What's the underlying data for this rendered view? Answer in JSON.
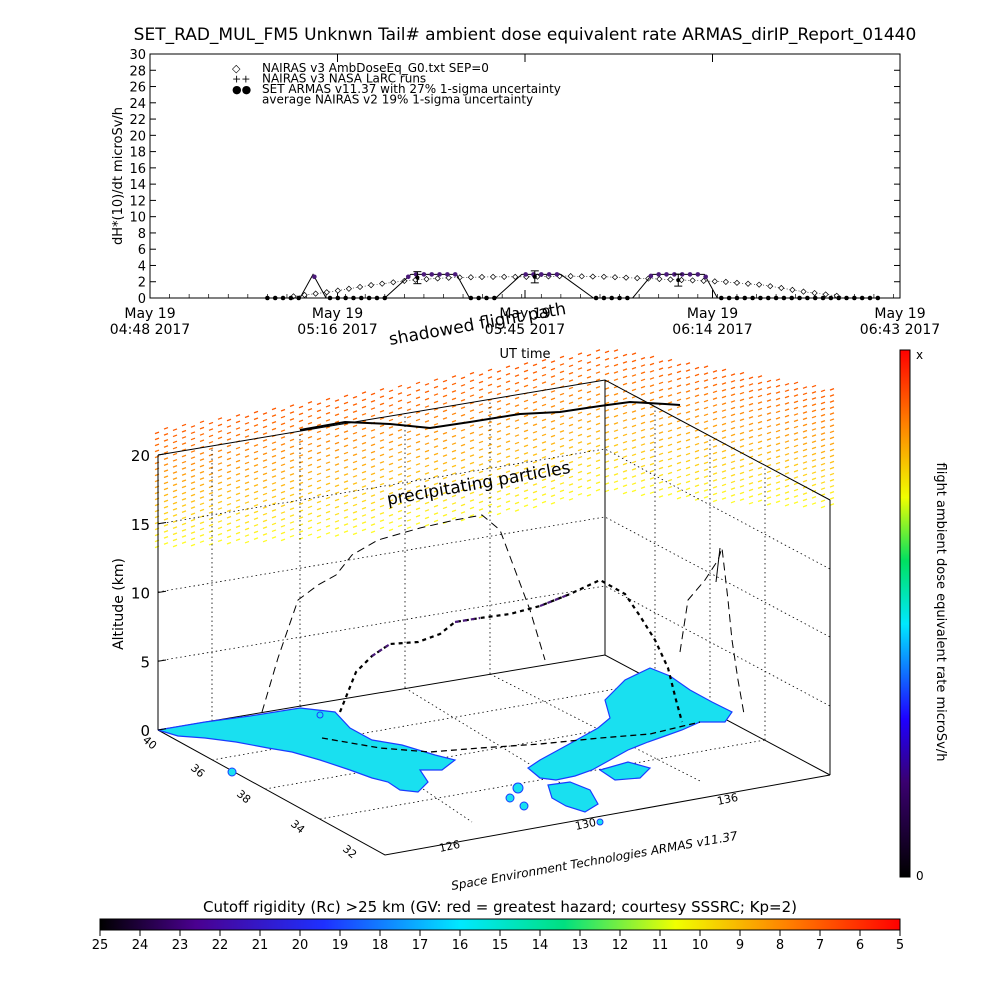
{
  "title": "SET_RAD_MUL_FM5 Unknwn Tail#  ambient dose equivalent rate ARMAS_dirIP_Report_01440",
  "top_chart": {
    "ylabel": "dH*(10)/dt microSv/h",
    "xlabel": "UT time",
    "yticks": [
      0,
      2,
      4,
      6,
      8,
      10,
      12,
      14,
      16,
      18,
      20,
      22,
      24,
      26,
      28,
      30
    ],
    "xticks": [
      {
        "l1": "May 19",
        "l2": "04:48 2017"
      },
      {
        "l1": "May 19",
        "l2": "05:16 2017"
      },
      {
        "l1": "May 19",
        "l2": "05:45 2017"
      },
      {
        "l1": "May 19",
        "l2": "06:14 2017"
      },
      {
        "l1": "May 19",
        "l2": "06:43 2017"
      }
    ],
    "legend": [
      {
        "marker": "◇",
        "text": "NAIRAS v3 AmbDoseEq_G0.txt SEP=0"
      },
      {
        "marker": "++",
        "text": "NAIRAS v3 NASA LaRC runs"
      },
      {
        "marker": "●●",
        "text": "SET ARMAS v11.37 with 27% 1-sigma uncertainty"
      },
      {
        "marker": "",
        "text": "average NAIRAS v2 19% 1-sigma uncertainty"
      }
    ]
  },
  "map3d": {
    "zlabel": "Altitude (km)",
    "zticks": [
      "0",
      "5",
      "10",
      "15",
      "20"
    ],
    "lat_ticks": [
      "40",
      "36",
      "38",
      "34",
      "32"
    ],
    "lon_ticks": [
      "126",
      "130",
      "136"
    ],
    "annotations": {
      "shadowed": "shadowed flight path",
      "precip": "precipitating particles",
      "credit": "Space Environment Technologies ARMAS v11.37"
    }
  },
  "colorbar_right": {
    "label": "flight ambient dose equivalent rate microSv/h",
    "top": "x",
    "bottom": "0"
  },
  "colorbar_bottom": {
    "label": "Cutoff rigidity (Rc) >25 km (GV: red = greatest hazard; courtesy SSSRC; Kp=2)",
    "ticks": [
      "25",
      "24",
      "23",
      "22",
      "21",
      "20",
      "19",
      "18",
      "17",
      "16",
      "15",
      "14",
      "13",
      "12",
      "11",
      "10",
      "9",
      "8",
      "7",
      "6",
      "5"
    ]
  },
  "colors": {
    "armas": "#4b1a7a",
    "land": "#19e0f0",
    "coast": "#1a3cff",
    "precip_top": "#ff7a00",
    "precip_bottom": "#ffff40"
  },
  "chart_data": {
    "type": "line",
    "title": "SET_RAD_MUL_FM5 Unknwn Tail#  ambient dose equivalent rate ARMAS_dirIP_Report_01440",
    "xlabel": "UT time",
    "ylabel": "dH*(10)/dt microSv/h",
    "ylim": [
      0,
      30
    ],
    "xlim_minutes_ut": [
      288,
      403
    ],
    "series": [
      {
        "name": "NAIRAS v3 AmbDoseEq_G0.txt SEP=0",
        "x": [
          310,
          316,
          322,
          328,
          334,
          340,
          346,
          352,
          358,
          364,
          370,
          376,
          382,
          388,
          394
        ],
        "y": [
          0.2,
          0.8,
          1.6,
          2.2,
          2.5,
          2.6,
          2.6,
          2.7,
          2.6,
          2.4,
          2.2,
          2.0,
          1.6,
          0.8,
          0.2
        ]
      },
      {
        "name": "SET ARMAS v11.37 with 27% 1-sigma uncertainty",
        "x": [
          306,
          311,
          313,
          315,
          318,
          320,
          324,
          328,
          331,
          335,
          337,
          341,
          345,
          349,
          351,
          356,
          358,
          362,
          365,
          368,
          370,
          373,
          375,
          380,
          386,
          392,
          400
        ],
        "y": [
          0,
          0,
          2.9,
          0,
          0,
          0,
          0,
          2.9,
          2.9,
          2.9,
          0,
          0,
          2.9,
          2.9,
          2.9,
          0,
          0,
          0,
          2.9,
          2.9,
          2.9,
          2.9,
          0,
          0,
          0,
          0,
          0
        ]
      },
      {
        "name": "average NAIRAS v2 19% 1-sigma uncertainty",
        "x": [
          329,
          347,
          369
        ],
        "y": [
          2.5,
          2.6,
          2.2
        ]
      }
    ],
    "legend_position": "top-left",
    "grid": false
  }
}
